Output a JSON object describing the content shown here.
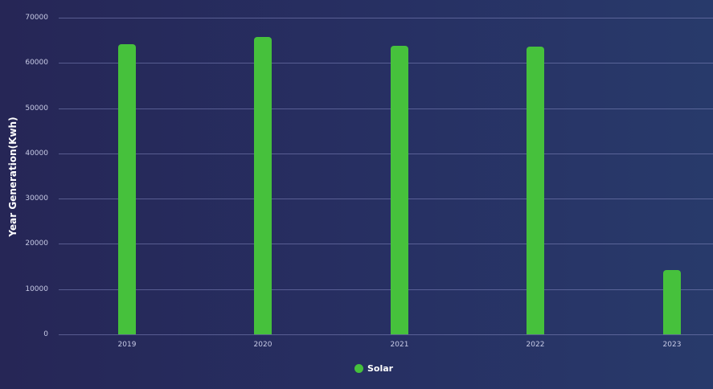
{
  "chart_data": {
    "type": "bar",
    "title": "",
    "xlabel": "",
    "ylabel": "Year Generation(Kwh)",
    "categories": [
      "2019",
      "2020",
      "2021",
      "2022",
      "2023"
    ],
    "series": [
      {
        "name": "Solar",
        "color": "#46c13c",
        "values": [
          64100,
          65700,
          63800,
          63600,
          14200
        ]
      }
    ],
    "ylim": [
      0,
      70000
    ],
    "yticks": [
      "0",
      "10000",
      "20000",
      "30000",
      "40000",
      "50000",
      "60000",
      "70000"
    ],
    "grid": true,
    "legend_position": "bottom-center"
  },
  "legend": {
    "label": "Solar"
  },
  "colors": {
    "bar": "#46c13c",
    "background": "#262656"
  }
}
